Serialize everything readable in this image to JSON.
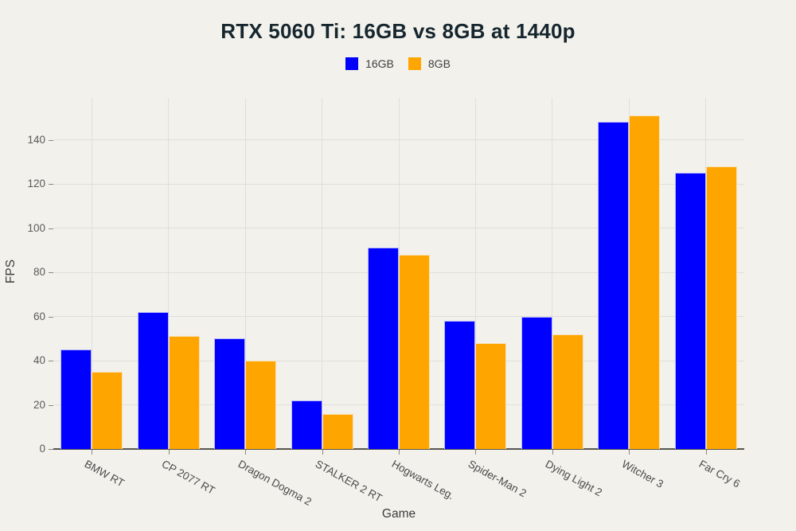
{
  "title": "RTX 5060 Ti: 16GB vs 8GB at 1440p",
  "colors": {
    "background": "#f2f1ec",
    "grid": "#e0dfd8",
    "axis_spine": "#57554f",
    "tick_text": "#5a5a5a",
    "title_text": "#16262e",
    "series_16gb": "#0000ff",
    "series_8gb": "#ffa500"
  },
  "chart_data": {
    "type": "bar",
    "title": "RTX 5060 Ti: 16GB vs 8GB at 1440p",
    "xlabel": "Game",
    "ylabel": "FPS",
    "categories": [
      "BMW RT",
      "CP 2077 RT",
      "Dragon Dogma 2",
      "STALKER 2 RT",
      "Hogwarts Leg.",
      "Spider-Man 2",
      "Dying Light 2",
      "Witcher 3",
      "Far Cry 6"
    ],
    "series": [
      {
        "name": "16GB",
        "color": "#0000ff",
        "values": [
          45,
          62,
          50,
          22,
          91,
          58,
          60,
          148,
          125
        ]
      },
      {
        "name": "8GB",
        "color": "#ffa500",
        "values": [
          35,
          51,
          40,
          16,
          88,
          48,
          52,
          151,
          128
        ]
      }
    ],
    "ylim": [
      0,
      160
    ],
    "yticks": [
      0,
      20,
      40,
      60,
      80,
      100,
      120,
      140
    ],
    "grid": true,
    "legend_position": "top-center"
  }
}
